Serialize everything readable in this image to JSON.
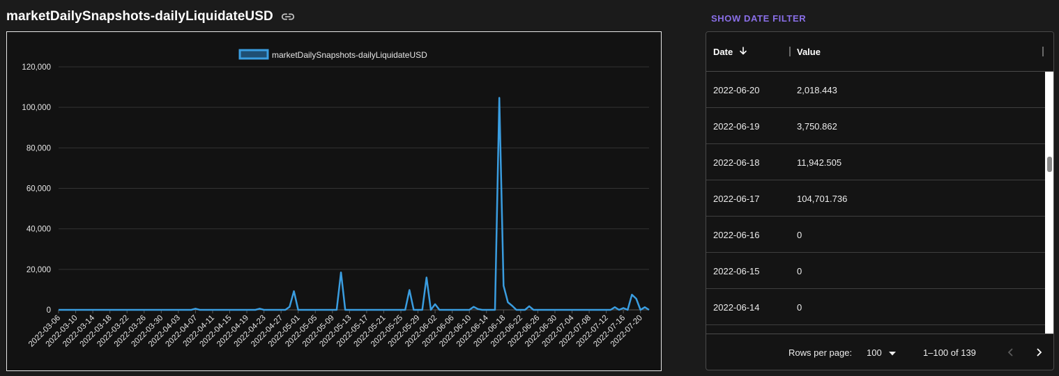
{
  "header": {
    "title": "marketDailySnapshots-dailyLiquidateUSD",
    "link_icon": "link-icon"
  },
  "filter": {
    "label": "SHOW DATE FILTER"
  },
  "colors": {
    "series": "#3a9de0",
    "accent": "#8a6fe8",
    "panel": "#121212",
    "page": "#1b1b1b"
  },
  "chart_data": {
    "type": "line",
    "title": "",
    "xlabel": "",
    "ylabel": "",
    "legend": {
      "position": "top-center",
      "entries": [
        "marketDailySnapshots-dailyLiquidateUSD"
      ]
    },
    "grid": true,
    "ylim": [
      0,
      120000
    ],
    "y_ticks": [
      "0",
      "20,000",
      "40,000",
      "60,000",
      "80,000",
      "100,000",
      "120,000"
    ],
    "x_tick_labels": [
      "2022-03-06",
      "2022-03-10",
      "2022-03-14",
      "2022-03-18",
      "2022-03-22",
      "2022-03-26",
      "2022-03-30",
      "2022-04-03",
      "2022-04-07",
      "2022-04-11",
      "2022-04-15",
      "2022-04-19",
      "2022-04-23",
      "2022-04-27",
      "2022-05-01",
      "2022-05-05",
      "2022-05-09",
      "2022-05-13",
      "2022-05-17",
      "2022-05-21",
      "2022-05-25",
      "2022-05-29",
      "2022-06-02",
      "2022-06-06",
      "2022-06-10",
      "2022-06-14",
      "2022-06-18",
      "2022-06-22",
      "2022-06-26",
      "2022-06-30",
      "2022-07-04",
      "2022-07-08",
      "2022-07-12",
      "2022-07-16",
      "2022-07-20"
    ],
    "x_start": "2022-03-06",
    "x_end": "2022-07-22",
    "series": [
      {
        "name": "marketDailySnapshots-dailyLiquidateUSD",
        "points": [
          [
            "2022-03-06",
            0
          ],
          [
            "2022-04-06",
            0
          ],
          [
            "2022-04-07",
            600
          ],
          [
            "2022-04-08",
            0
          ],
          [
            "2022-04-21",
            0
          ],
          [
            "2022-04-22",
            600
          ],
          [
            "2022-04-23",
            0
          ],
          [
            "2022-04-28",
            0
          ],
          [
            "2022-04-29",
            1500
          ],
          [
            "2022-04-30",
            9200
          ],
          [
            "2022-05-01",
            0
          ],
          [
            "2022-05-10",
            0
          ],
          [
            "2022-05-11",
            18500
          ],
          [
            "2022-05-12",
            0
          ],
          [
            "2022-05-26",
            0
          ],
          [
            "2022-05-27",
            9800
          ],
          [
            "2022-05-28",
            0
          ],
          [
            "2022-05-30",
            0
          ],
          [
            "2022-05-31",
            16000
          ],
          [
            "2022-06-01",
            0
          ],
          [
            "2022-06-02",
            2800
          ],
          [
            "2022-06-03",
            0
          ],
          [
            "2022-06-10",
            0
          ],
          [
            "2022-06-11",
            1500
          ],
          [
            "2022-06-12",
            400
          ],
          [
            "2022-06-13",
            0
          ],
          [
            "2022-06-16",
            0
          ],
          [
            "2022-06-17",
            104701.736
          ],
          [
            "2022-06-18",
            11942.505
          ],
          [
            "2022-06-19",
            3750.862
          ],
          [
            "2022-06-20",
            2018.443
          ],
          [
            "2022-06-21",
            0
          ],
          [
            "2022-06-23",
            0
          ],
          [
            "2022-06-24",
            1800
          ],
          [
            "2022-06-25",
            0
          ],
          [
            "2022-07-13",
            0
          ],
          [
            "2022-07-14",
            1300
          ],
          [
            "2022-07-15",
            0
          ],
          [
            "2022-07-16",
            900
          ],
          [
            "2022-07-17",
            0
          ],
          [
            "2022-07-18",
            7500
          ],
          [
            "2022-07-19",
            5500
          ],
          [
            "2022-07-20",
            0
          ],
          [
            "2022-07-21",
            1300
          ],
          [
            "2022-07-22",
            0
          ]
        ]
      }
    ]
  },
  "table": {
    "columns": [
      {
        "label": "Date",
        "sort": "desc"
      },
      {
        "label": "Value"
      }
    ],
    "rows": [
      {
        "date": "2022-06-20",
        "value": "2,018.443"
      },
      {
        "date": "2022-06-19",
        "value": "3,750.862"
      },
      {
        "date": "2022-06-18",
        "value": "11,942.505"
      },
      {
        "date": "2022-06-17",
        "value": "104,701.736"
      },
      {
        "date": "2022-06-16",
        "value": "0"
      },
      {
        "date": "2022-06-15",
        "value": "0"
      },
      {
        "date": "2022-06-14",
        "value": "0"
      }
    ],
    "footer": {
      "rows_per_page_label": "Rows per page:",
      "rows_per_page_value": "100",
      "range_text": "1–100 of 139"
    }
  }
}
